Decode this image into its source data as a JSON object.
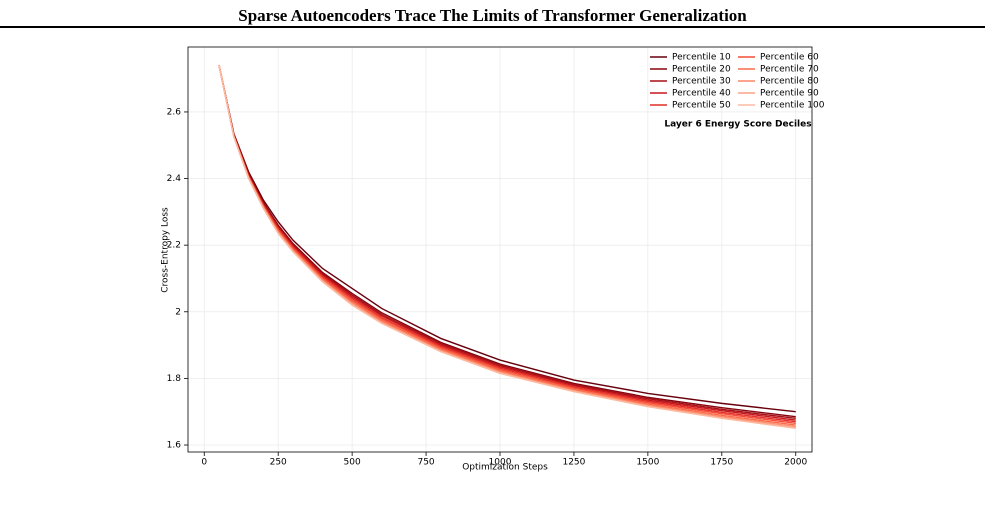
{
  "header": {
    "title": "Sparse Autoencoders Trace The Limits of Transformer Generalization"
  },
  "chart_data": {
    "type": "line",
    "x_label": "Optimization Steps",
    "y_label": "Cross-Entropy Loss",
    "annotation": "Layer 6 Energy Score Deciles",
    "x": [
      50,
      100,
      150,
      200,
      250,
      300,
      400,
      500,
      600,
      800,
      1000,
      1250,
      1500,
      1750,
      2000
    ],
    "series": [
      {
        "name": "Percentile 10",
        "color": "#67000d",
        "values": [
          2.74,
          2.535,
          2.42,
          2.335,
          2.27,
          2.215,
          2.13,
          2.07,
          2.01,
          1.92,
          1.855,
          1.795,
          1.755,
          1.725,
          1.7
        ]
      },
      {
        "name": "Percentile 20",
        "color": "#86070f",
        "values": [
          2.74,
          2.532,
          2.414,
          2.328,
          2.26,
          2.205,
          2.118,
          2.055,
          1.997,
          1.908,
          1.843,
          1.785,
          1.743,
          1.712,
          1.685
        ]
      },
      {
        "name": "Percentile 30",
        "color": "#a50f15",
        "values": [
          2.74,
          2.531,
          2.412,
          2.325,
          2.256,
          2.201,
          2.114,
          2.05,
          1.992,
          1.904,
          1.839,
          1.781,
          1.739,
          1.707,
          1.68
        ]
      },
      {
        "name": "Percentile 40",
        "color": "#c8171d",
        "values": [
          2.74,
          2.53,
          2.41,
          2.323,
          2.253,
          2.198,
          2.11,
          2.045,
          1.988,
          1.9,
          1.835,
          1.778,
          1.735,
          1.703,
          1.675
        ]
      },
      {
        "name": "Percentile 50",
        "color": "#e32f27",
        "values": [
          2.74,
          2.529,
          2.408,
          2.32,
          2.249,
          2.194,
          2.106,
          2.04,
          1.983,
          1.896,
          1.831,
          1.774,
          1.731,
          1.698,
          1.67
        ]
      },
      {
        "name": "Percentile 60",
        "color": "#f44d38",
        "values": [
          2.74,
          2.528,
          2.406,
          2.318,
          2.246,
          2.191,
          2.102,
          2.035,
          1.979,
          1.892,
          1.827,
          1.771,
          1.727,
          1.694,
          1.665
        ]
      },
      {
        "name": "Percentile 70",
        "color": "#fb6a4a",
        "values": [
          2.74,
          2.527,
          2.404,
          2.315,
          2.242,
          2.187,
          2.098,
          2.03,
          1.974,
          1.888,
          1.823,
          1.767,
          1.723,
          1.689,
          1.66
        ]
      },
      {
        "name": "Percentile 80",
        "color": "#fc8767",
        "values": [
          2.74,
          2.526,
          2.402,
          2.313,
          2.239,
          2.184,
          2.094,
          2.025,
          1.97,
          1.884,
          1.819,
          1.764,
          1.719,
          1.685,
          1.655
        ]
      },
      {
        "name": "Percentile 90",
        "color": "#fca486",
        "values": [
          2.74,
          2.526,
          2.401,
          2.311,
          2.237,
          2.182,
          2.092,
          2.023,
          1.967,
          1.882,
          1.817,
          1.762,
          1.717,
          1.682,
          1.653
        ]
      },
      {
        "name": "Percentile 100",
        "color": "#fcbba1",
        "values": [
          2.74,
          2.525,
          2.4,
          2.31,
          2.235,
          2.18,
          2.09,
          2.02,
          1.965,
          1.88,
          1.815,
          1.76,
          1.715,
          1.68,
          1.65
        ]
      }
    ],
    "xlim": [
      -55,
      2055
    ],
    "xticks": [
      0,
      250,
      500,
      750,
      1000,
      1250,
      1500,
      1750,
      2000
    ],
    "ylim": [
      1.579,
      2.795
    ],
    "yticks": [
      1.6,
      1.8,
      2.0,
      2.2,
      2.4,
      2.6
    ],
    "grid": true,
    "legend": "upper right"
  }
}
